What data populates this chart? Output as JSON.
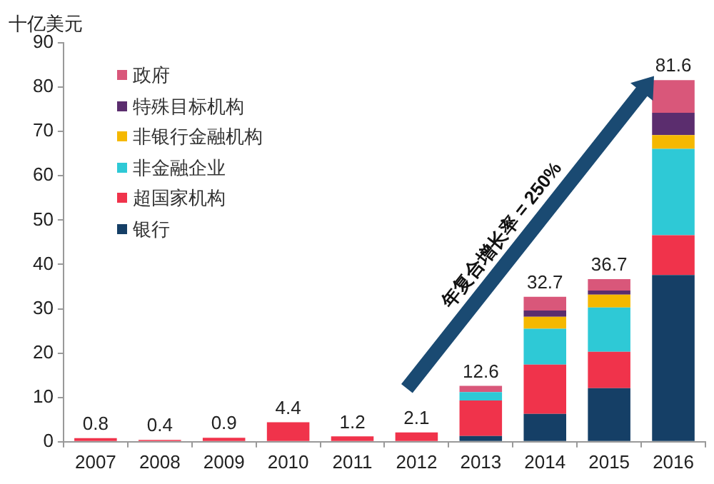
{
  "chart_data": {
    "type": "bar",
    "stacked": true,
    "ylabel": "十亿美元",
    "categories": [
      "2007",
      "2008",
      "2009",
      "2010",
      "2011",
      "2012",
      "2013",
      "2014",
      "2015",
      "2016"
    ],
    "series": [
      {
        "name": "银行",
        "color": "#153f66",
        "values": [
          null,
          null,
          null,
          null,
          null,
          null,
          1.3,
          6.3,
          12.1,
          37.6
        ]
      },
      {
        "name": "超国家机构",
        "color": "#f0334b",
        "values": [
          0.8,
          0.4,
          0.9,
          4.4,
          1.2,
          2.1,
          8.0,
          11.1,
          8.2,
          9.0
        ]
      },
      {
        "name": "非金融企业",
        "color": "#2ec9d6",
        "values": [
          null,
          null,
          null,
          null,
          null,
          null,
          1.9,
          8.1,
          10.0,
          19.5
        ]
      },
      {
        "name": "非银行金融机构",
        "color": "#f5b800",
        "values": [
          null,
          null,
          null,
          null,
          null,
          null,
          null,
          2.7,
          2.9,
          3.1
        ]
      },
      {
        "name": "特殊目标机构",
        "color": "#5b2d6e",
        "values": [
          null,
          null,
          null,
          null,
          null,
          null,
          null,
          1.4,
          0.9,
          5.0
        ]
      },
      {
        "name": "政府",
        "color": "#d9577a",
        "values": [
          null,
          null,
          null,
          null,
          null,
          null,
          1.4,
          3.1,
          2.6,
          7.4
        ]
      }
    ],
    "totals": [
      "0.8",
      "0.4",
      "0.9",
      "4.4",
      "1.2",
      "2.1",
      "12.6",
      "32.7",
      "36.7",
      "81.6"
    ],
    "annotations": [
      "年复合增长率 = 250%"
    ],
    "ylim": [
      0,
      90
    ],
    "yticks": [
      0,
      10,
      20,
      30,
      40,
      50,
      60,
      70,
      80,
      90
    ],
    "grid": false,
    "legend": "top left"
  }
}
